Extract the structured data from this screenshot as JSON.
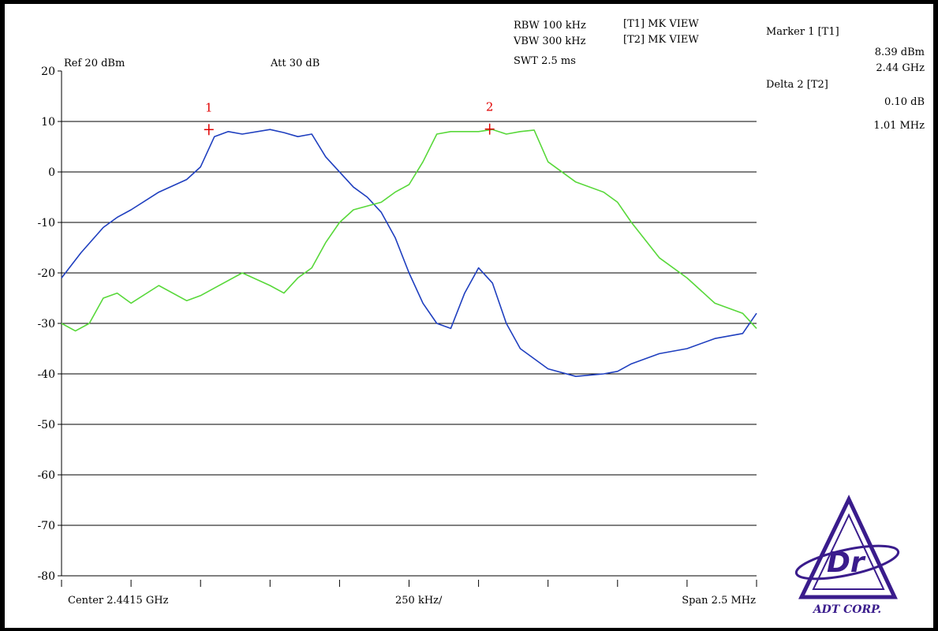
{
  "header": {
    "ref": "Ref 20 dBm",
    "att": "Att  30 dB",
    "rbw": "RBW 100 kHz",
    "vbw": "VBW 300 kHz",
    "swt": "SWT 2.5 ms",
    "trace1_mode": "[T1] MK VIEW",
    "trace2_mode": "[T2] MK VIEW"
  },
  "markers_panel": {
    "marker1_title": "Marker 1 [T1]",
    "marker1_level": "8.39 dBm",
    "marker1_freq": "2.44 GHz",
    "delta2_title": "Delta 2 [T2]",
    "delta2_level": "0.10 dB",
    "delta2_freq": "1.01 MHz"
  },
  "footer": {
    "center": "Center 2.4415 GHz",
    "per_div": "250 kHz/",
    "span": "Span 2.5 MHz"
  },
  "logo": {
    "text": "ADT CORP.",
    "mark": "Dr",
    "color": "#3a1c8c"
  },
  "chart_data": {
    "type": "line",
    "xlabel": "",
    "ylabel": "",
    "x_unit": "MHz offset from center",
    "xlim": [
      -1.25,
      1.25
    ],
    "ylim": [
      -80,
      20
    ],
    "yticks": [
      20,
      10,
      0,
      -10,
      -20,
      -30,
      -40,
      -50,
      -60,
      -70,
      -80
    ],
    "ytick_labels": [
      "20",
      "10",
      "0",
      "-10",
      "-20",
      "-30",
      "-40",
      "-50",
      "-60",
      "-70",
      "-80"
    ],
    "grid": true,
    "series": [
      {
        "color": "#1f3fbf",
        "x": [
          -1.25,
          -1.18,
          -1.1,
          -1.05,
          -1.0,
          -0.9,
          -0.8,
          -0.75,
          -0.7,
          -0.65,
          -0.6,
          -0.5,
          -0.45,
          -0.4,
          -0.35,
          -0.3,
          -0.2,
          -0.15,
          -0.1,
          -0.05,
          0.0,
          0.05,
          0.1,
          0.15,
          0.2,
          0.25,
          0.3,
          0.35,
          0.4,
          0.5,
          0.6,
          0.7,
          0.75,
          0.8,
          0.9,
          1.0,
          1.1,
          1.2,
          1.25
        ],
        "y": [
          -21,
          -16,
          -11,
          -9,
          -7.5,
          -4,
          -1.5,
          1,
          7,
          8,
          7.5,
          8.4,
          7.8,
          7,
          7.5,
          3,
          -3,
          -5,
          -8,
          -13,
          -20,
          -26,
          -30,
          -31,
          -24,
          -19,
          -22,
          -30,
          -35,
          -39,
          -40.5,
          -40,
          -39.5,
          -38,
          -36,
          -35,
          -33,
          -32,
          -28
        ]
      },
      {
        "color": "#58d83a",
        "x": [
          -1.25,
          -1.2,
          -1.15,
          -1.1,
          -1.05,
          -1.0,
          -0.9,
          -0.8,
          -0.75,
          -0.7,
          -0.6,
          -0.5,
          -0.45,
          -0.4,
          -0.35,
          -0.3,
          -0.25,
          -0.2,
          -0.1,
          -0.05,
          0.0,
          0.05,
          0.1,
          0.15,
          0.2,
          0.25,
          0.3,
          0.35,
          0.4,
          0.45,
          0.5,
          0.6,
          0.7,
          0.75,
          0.8,
          0.9,
          1.0,
          1.1,
          1.2,
          1.25
        ],
        "y": [
          -30,
          -31.5,
          -30,
          -25,
          -24,
          -26,
          -22.5,
          -25.5,
          -24.5,
          -23,
          -20,
          -22.5,
          -24,
          -21,
          -19,
          -14,
          -10,
          -7.5,
          -6,
          -4,
          -2.5,
          2,
          7.5,
          8,
          8,
          8,
          8.4,
          7.5,
          8,
          8.3,
          2,
          -2,
          -4,
          -6,
          -10,
          -17,
          -21,
          -26,
          -28,
          -31
        ]
      }
    ],
    "markers": [
      {
        "label": "1",
        "x": -0.72,
        "y": 8.39
      },
      {
        "label": "2",
        "x": 0.29,
        "y": 8.49
      }
    ]
  }
}
